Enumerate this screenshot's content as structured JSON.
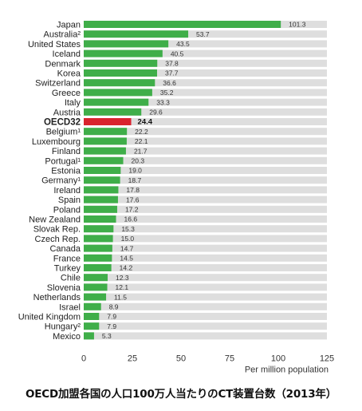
{
  "chart_data": {
    "type": "bar",
    "orientation": "horizontal",
    "categories": [
      "Japan",
      "Australia²",
      "United States",
      "Iceland",
      "Denmark",
      "Korea",
      "Switzerland",
      "Greece",
      "Italy",
      "Austria",
      "OECD32",
      "Belgium¹",
      "Luxembourg",
      "Finland",
      "Portugal¹",
      "Estonia",
      "Germany¹",
      "Ireland",
      "Spain",
      "Poland",
      "New Zealand",
      "Slovak Rep.",
      "Czech Rep.",
      "Canada",
      "France",
      "Turkey",
      "Chile",
      "Slovenia",
      "Netherlands",
      "Israel",
      "United Kingdom",
      "Hungary²",
      "Mexico"
    ],
    "values": [
      101.3,
      53.7,
      43.5,
      40.5,
      37.8,
      37.7,
      36.6,
      35.2,
      33.3,
      29.6,
      24.4,
      22.2,
      22.1,
      21.7,
      20.3,
      19.0,
      18.7,
      17.8,
      17.6,
      17.2,
      16.6,
      15.3,
      15.0,
      14.7,
      14.5,
      14.2,
      12.3,
      12.1,
      11.5,
      8.9,
      7.9,
      7.9,
      5.3
    ],
    "value_labels": [
      "101.3",
      "53.7",
      "43.5",
      "40.5",
      "37.8",
      "37.7",
      "36.6",
      "35.2",
      "33.3",
      "29.6",
      "24.4",
      "22.2",
      "22.1",
      "21.7",
      "20.3",
      "19.0",
      "18.7",
      "17.8",
      "17.6",
      "17.2",
      "16.6",
      "15.3",
      "15.0",
      "14.7",
      "14.5",
      "14.2",
      "12.3",
      "12.1",
      "11.5",
      "8.9",
      "7.9",
      "7.9",
      "5.3"
    ],
    "highlight": "OECD32",
    "xlabel": "Per million population",
    "xlim": [
      0,
      125
    ],
    "xticks": [
      0,
      25,
      50,
      75,
      100,
      125
    ],
    "xtick_labels": [
      "0",
      "25",
      "50",
      "75",
      "100",
      "125"
    ],
    "grid": false,
    "colors": {
      "bar": "#3fae49",
      "highlight_bar": "#d9232e",
      "track": "#dedede"
    }
  },
  "caption": "OECD加盟各国の人口100万人当たりのCT装置台数（2013年）"
}
